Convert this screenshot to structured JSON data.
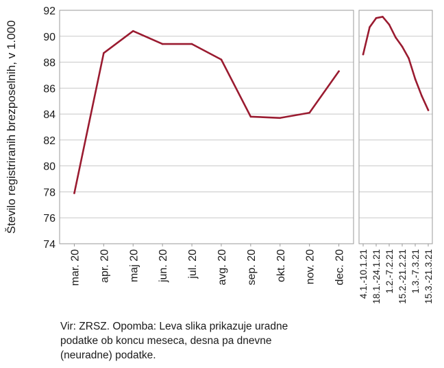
{
  "chart_data": [
    {
      "type": "line",
      "ylabel": "Število registriranih brezposelnih, v 1.000",
      "ylim": [
        74,
        92
      ],
      "yticks": [
        74,
        76,
        78,
        80,
        82,
        84,
        86,
        88,
        90,
        92
      ],
      "grid": true,
      "categories": [
        "mar. 20",
        "apr. 20",
        "maj 20",
        "jun. 20",
        "jul. 20",
        "avg. 20",
        "sep. 20",
        "okt. 20",
        "nov. 20",
        "dec. 20"
      ],
      "series": [
        {
          "values": [
            77.9,
            88.7,
            90.4,
            89.4,
            89.4,
            88.2,
            83.8,
            83.7,
            84.1,
            87.3
          ]
        }
      ]
    },
    {
      "type": "line",
      "ylim": [
        74,
        92
      ],
      "grid": true,
      "tick_labels": [
        "4.1.-10.1.21",
        "18.1.-24.1.21",
        "1.2.-7.2.21",
        "15.2.-21.2.21",
        "1.3.-7.3.21",
        "15.3.-21.3.21"
      ],
      "series": [
        {
          "values": [
            88.6,
            90.7,
            91.4,
            91.5,
            90.9,
            89.9,
            89.2,
            88.3,
            86.7,
            85.4,
            84.3
          ]
        }
      ]
    }
  ],
  "colors": {
    "line": "#9a1b30",
    "grid": "#c8c8c8",
    "axis": "#9a9a9a"
  },
  "note": {
    "line1": "Vir: ZRSZ. Opomba: Leva slika prikazuje uradne",
    "line2": "podatke ob koncu meseca, desna pa dnevne",
    "line3": "(neuradne) podatke."
  }
}
